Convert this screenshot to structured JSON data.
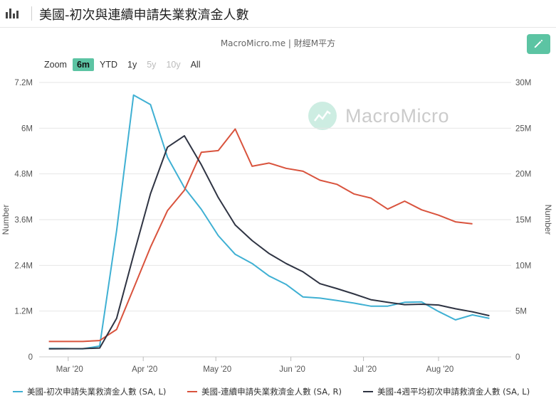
{
  "header": {
    "title": "美國-初次與連續申請失業救濟金人數"
  },
  "source_label": "MacroMicro.me | 財經M平方",
  "watermark_text": "MacroMicro",
  "zoom": {
    "label": "Zoom",
    "options": [
      {
        "label": "6m",
        "state": "active"
      },
      {
        "label": "YTD",
        "state": "normal"
      },
      {
        "label": "1y",
        "state": "normal"
      },
      {
        "label": "5y",
        "state": "disabled"
      },
      {
        "label": "10y",
        "state": "disabled"
      },
      {
        "label": "All",
        "state": "normal"
      }
    ]
  },
  "colors": {
    "initial": "#3fb0d3",
    "continuing": "#d9533d",
    "average": "#2f3443",
    "accent": "#5cc4a3"
  },
  "chart_data": {
    "type": "line",
    "x_ticks": [
      "Mar '20",
      "Apr '20",
      "May '20",
      "Jun '20",
      "Jul '20",
      "Aug '20"
    ],
    "y_left": {
      "label": "Number",
      "range": [
        0,
        7200000
      ],
      "ticks": [
        "0",
        "1.2M",
        "2.4M",
        "3.6M",
        "4.8M",
        "6M",
        "7.2M"
      ]
    },
    "y_right": {
      "label": "Number",
      "range": [
        0,
        30000000
      ],
      "ticks": [
        "0",
        "5M",
        "10M",
        "15M",
        "20M",
        "25M",
        "30M"
      ]
    },
    "series": [
      {
        "name": "美國-初次申請失業救濟金人數 (SA, L)",
        "axis": "left",
        "x": [
          "2020-02-22",
          "2020-02-29",
          "2020-03-07",
          "2020-03-14",
          "2020-03-21",
          "2020-03-28",
          "2020-04-04",
          "2020-04-11",
          "2020-04-18",
          "2020-04-25",
          "2020-05-02",
          "2020-05-09",
          "2020-05-16",
          "2020-05-23",
          "2020-05-30",
          "2020-06-06",
          "2020-06-13",
          "2020-06-20",
          "2020-06-27",
          "2020-07-04",
          "2020-07-11",
          "2020-07-18",
          "2020-07-25",
          "2020-08-01",
          "2020-08-08",
          "2020-08-15",
          "2020-08-22"
        ],
        "values": [
          220000,
          217000,
          211000,
          282000,
          3310000,
          6870000,
          6620000,
          5240000,
          4440000,
          3870000,
          3180000,
          2690000,
          2450000,
          2120000,
          1900000,
          1570000,
          1540000,
          1480000,
          1410000,
          1330000,
          1330000,
          1430000,
          1440000,
          1190000,
          970000,
          1100000,
          1010000
        ]
      },
      {
        "name": "美國-連續申請失業救濟金人數 (SA, R)",
        "axis": "right",
        "x": [
          "2020-02-22",
          "2020-02-29",
          "2020-03-07",
          "2020-03-14",
          "2020-03-21",
          "2020-03-28",
          "2020-04-04",
          "2020-04-11",
          "2020-04-18",
          "2020-04-25",
          "2020-05-02",
          "2020-05-09",
          "2020-05-16",
          "2020-05-23",
          "2020-05-30",
          "2020-06-06",
          "2020-06-13",
          "2020-06-20",
          "2020-06-27",
          "2020-07-04",
          "2020-07-11",
          "2020-07-18",
          "2020-07-25",
          "2020-08-01",
          "2020-08-08",
          "2020-08-15"
        ],
        "values": [
          1680000,
          1680000,
          1680000,
          1780000,
          2990000,
          7470000,
          11990000,
          15980000,
          18220000,
          22360000,
          22550000,
          24910000,
          20840000,
          21190000,
          20610000,
          20290000,
          19310000,
          18860000,
          17810000,
          17360000,
          16150000,
          17020000,
          16070000,
          15490000,
          14760000,
          14540000
        ]
      },
      {
        "name": "美國-4週平均初次申請救濟金人數 (SA, L)",
        "axis": "left",
        "x": [
          "2020-02-22",
          "2020-02-29",
          "2020-03-07",
          "2020-03-14",
          "2020-03-21",
          "2020-03-28",
          "2020-04-04",
          "2020-04-11",
          "2020-04-18",
          "2020-04-25",
          "2020-05-02",
          "2020-05-09",
          "2020-05-16",
          "2020-05-23",
          "2020-05-30",
          "2020-06-06",
          "2020-06-13",
          "2020-06-20",
          "2020-06-27",
          "2020-07-04",
          "2020-07-11",
          "2020-07-18",
          "2020-07-25",
          "2020-08-01",
          "2020-08-08",
          "2020-08-15",
          "2020-08-22"
        ],
        "values": [
          210000,
          212000,
          215000,
          232000,
          1010000,
          2670000,
          4280000,
          5500000,
          5800000,
          5040000,
          4180000,
          3460000,
          3050000,
          2710000,
          2450000,
          2230000,
          1920000,
          1790000,
          1650000,
          1500000,
          1430000,
          1370000,
          1380000,
          1360000,
          1260000,
          1180000,
          1080000
        ]
      }
    ]
  }
}
